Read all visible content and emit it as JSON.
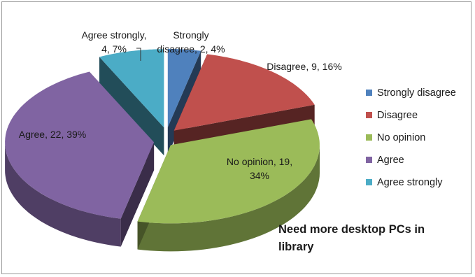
{
  "chart_data": {
    "type": "pie",
    "style": "3d-exploded",
    "title": "Need more desktop PCs in library",
    "categories": [
      "Strongly disagree",
      "Disagree",
      "No opinion",
      "Agree",
      "Agree strongly"
    ],
    "values": [
      2,
      9,
      19,
      22,
      4
    ],
    "percentages": [
      4,
      16,
      34,
      39,
      7
    ],
    "data_labels": [
      [
        "Strongly",
        "disagree, 2, 4%"
      ],
      [
        "Disagree, 9, 16%"
      ],
      [
        "No opinion, 19,",
        "34%"
      ],
      [
        "Agree, 22, 39%"
      ],
      [
        "Agree strongly,",
        "4, 7%"
      ]
    ],
    "colors": [
      "#4f81bd",
      "#c0504d",
      "#9bbb59",
      "#8064a2",
      "#4bacc6"
    ],
    "legend_position": "right"
  }
}
